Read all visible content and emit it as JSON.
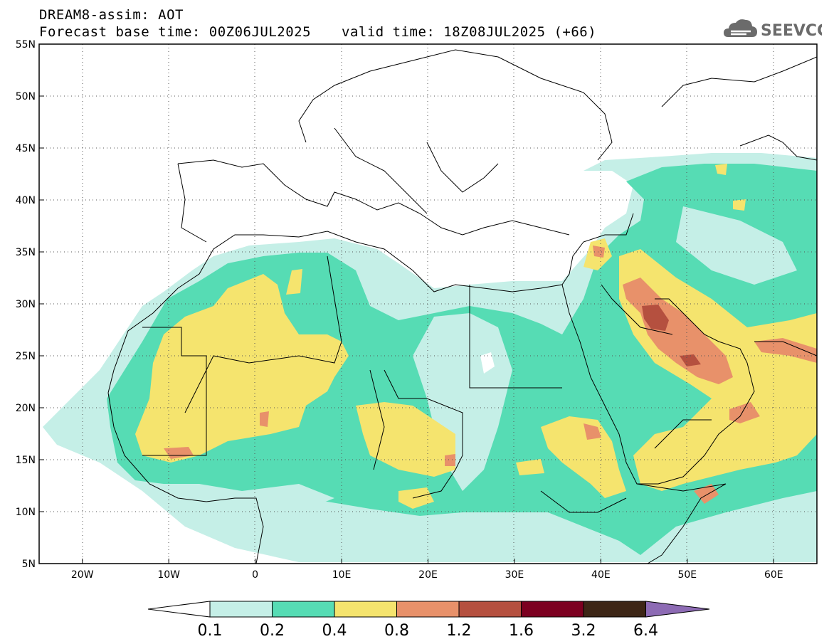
{
  "header": {
    "title": "DREAM8-assim: AOT",
    "base_time": "Forecast base time: 00Z06JUL2025",
    "valid_time": "valid time: 18Z08JUL2025 (+66)"
  },
  "logo": {
    "text": "SEEVCCC",
    "icon": "cloud-icon",
    "color": "#6b6b6b"
  },
  "chart_data": {
    "type": "heatmap",
    "variable": "Aerosol Optical Thickness",
    "lon_range": [
      -25,
      65
    ],
    "lat_range": [
      5,
      55
    ],
    "x_ticks": [
      "20W",
      "10W",
      "0",
      "10E",
      "20E",
      "30E",
      "40E",
      "50E",
      "60E"
    ],
    "x_tick_values": [
      -20,
      -10,
      0,
      10,
      20,
      30,
      40,
      50,
      60
    ],
    "y_ticks": [
      "5N",
      "10N",
      "15N",
      "20N",
      "25N",
      "30N",
      "35N",
      "40N",
      "45N",
      "50N",
      "55N"
    ],
    "y_tick_values": [
      5,
      10,
      15,
      20,
      25,
      30,
      35,
      40,
      45,
      50,
      55
    ],
    "grid": true,
    "colorbar": {
      "labels": [
        "0.1",
        "0.2",
        "0.4",
        "0.8",
        "1.2",
        "1.6",
        "3.2",
        "6.4"
      ],
      "colors": [
        "#c5efe7",
        "#56dcb4",
        "#f5e46e",
        "#e8916a",
        "#b5503f",
        "#7c0020",
        "#3d2616",
        "#8d6bb4"
      ]
    }
  }
}
